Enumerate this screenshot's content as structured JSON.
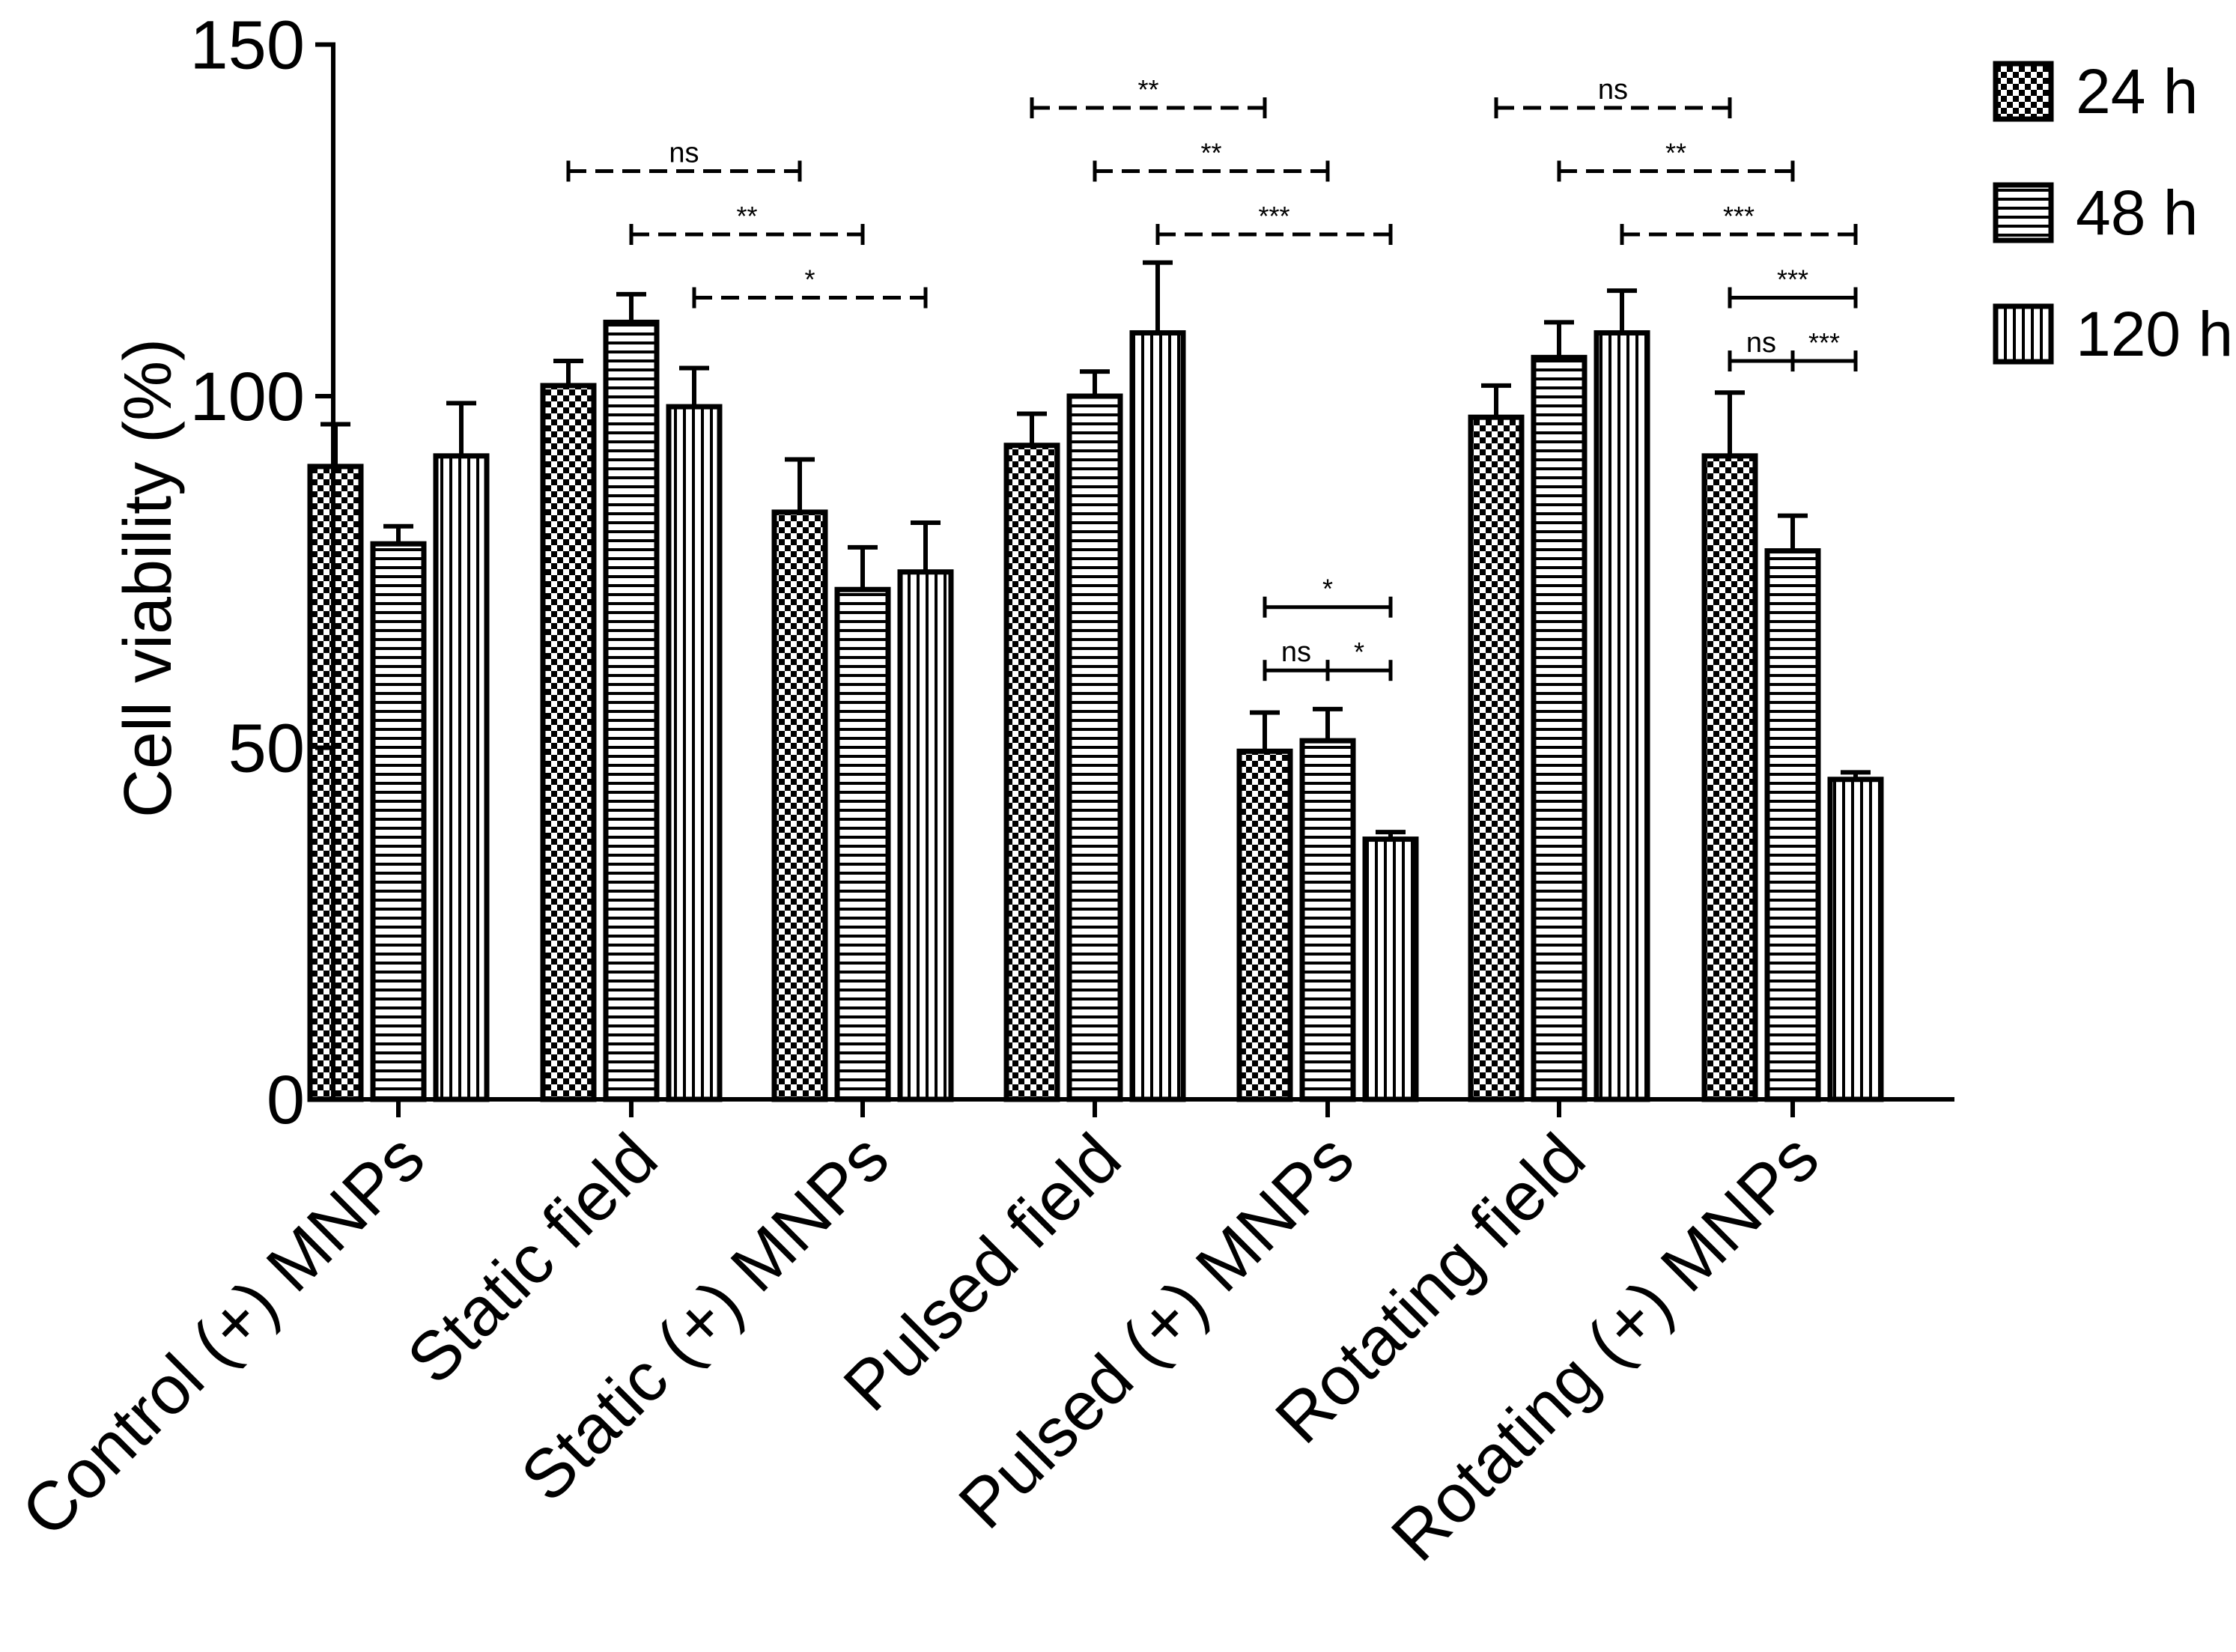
{
  "chart_data": {
    "type": "bar",
    "title": "",
    "xlabel": "",
    "ylabel": "Cell viability (%)",
    "ylim": [
      0,
      150
    ],
    "yticks": [
      0,
      50,
      100,
      150
    ],
    "grid": false,
    "legend_position": "top-right",
    "categories": [
      "Control (+) MNPs",
      "Static field",
      "Static (+) MNPs",
      "Pulsed field",
      "Pulsed (+) MNPs",
      "Rotating field",
      "Rotating (+) MNPs"
    ],
    "series": [
      {
        "name": "24 h",
        "pattern": "checker",
        "values": [
          90,
          101.5,
          83.5,
          93,
          49.5,
          97,
          91.5
        ],
        "errors": [
          6,
          3.5,
          7.5,
          4.5,
          5.5,
          4.5,
          9
        ]
      },
      {
        "name": "48 h",
        "pattern": "horizontal",
        "values": [
          79,
          110.5,
          72.5,
          100,
          51,
          105.5,
          78
        ],
        "errors": [
          2.5,
          4,
          6,
          3.5,
          4.5,
          5,
          5
        ]
      },
      {
        "name": "120 h",
        "pattern": "vertical",
        "values": [
          91.5,
          98.5,
          75,
          109,
          37,
          109,
          45.5
        ],
        "errors": [
          7.5,
          5.5,
          7,
          10,
          1,
          6,
          1
        ]
      }
    ],
    "annotations": [
      {
        "label": "ns",
        "style": "dashed",
        "from": [
          1,
          0
        ],
        "to": [
          2,
          0
        ],
        "y": 132
      },
      {
        "label": "**",
        "style": "dashed",
        "from": [
          1,
          1
        ],
        "to": [
          2,
          1
        ],
        "y": 123
      },
      {
        "label": "*",
        "style": "dashed",
        "from": [
          1,
          2
        ],
        "to": [
          2,
          2
        ],
        "y": 114
      },
      {
        "label": "**",
        "style": "dashed",
        "from": [
          3,
          0
        ],
        "to": [
          4,
          0
        ],
        "y": 141
      },
      {
        "label": "**",
        "style": "dashed",
        "from": [
          3,
          1
        ],
        "to": [
          4,
          1
        ],
        "y": 132
      },
      {
        "label": "***",
        "style": "dashed",
        "from": [
          3,
          2
        ],
        "to": [
          4,
          2
        ],
        "y": 123
      },
      {
        "label": "*",
        "style": "solid",
        "from": [
          4,
          0
        ],
        "to": [
          4,
          2
        ],
        "y": 70
      },
      {
        "label": "ns",
        "style": "solid",
        "from": [
          4,
          0
        ],
        "to": [
          4,
          1
        ],
        "y": 61
      },
      {
        "label": "*",
        "style": "solid",
        "from": [
          4,
          1
        ],
        "to": [
          4,
          2
        ],
        "y": 61
      },
      {
        "label": "ns",
        "style": "dashed",
        "from": [
          5,
          0
        ],
        "to": [
          6,
          0
        ],
        "y": 141
      },
      {
        "label": "**",
        "style": "dashed",
        "from": [
          5,
          1
        ],
        "to": [
          6,
          1
        ],
        "y": 132
      },
      {
        "label": "***",
        "style": "dashed",
        "from": [
          5,
          2
        ],
        "to": [
          6,
          2
        ],
        "y": 123
      },
      {
        "label": "***",
        "style": "solid",
        "from": [
          6,
          0
        ],
        "to": [
          6,
          2
        ],
        "y": 114
      },
      {
        "label": "ns",
        "style": "solid",
        "from": [
          6,
          0
        ],
        "to": [
          6,
          1
        ],
        "y": 105
      },
      {
        "label": "***",
        "style": "solid",
        "from": [
          6,
          1
        ],
        "to": [
          6,
          2
        ],
        "y": 105
      }
    ]
  }
}
